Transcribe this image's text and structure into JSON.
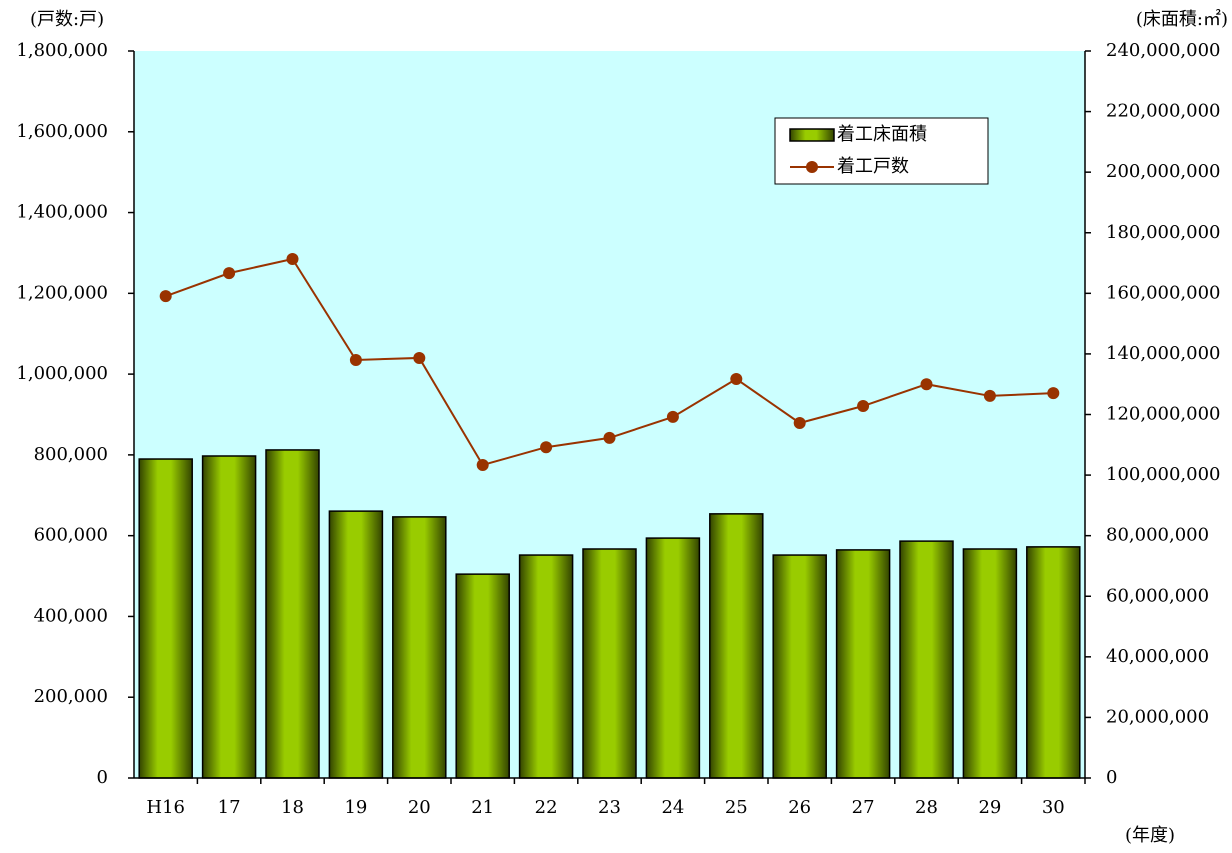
{
  "chart_data": {
    "type": "bar-line",
    "y_label": "(戸数:戸)",
    "y2_label": "(床面積:㎡)",
    "x_label": "(年度)",
    "categories": [
      "H16",
      "17",
      "18",
      "19",
      "20",
      "21",
      "22",
      "23",
      "24",
      "25",
      "26",
      "27",
      "28",
      "29",
      "30"
    ],
    "series": [
      {
        "name": "着工床面積",
        "type": "bar",
        "axis": "y2",
        "color": "#99cc00",
        "values": [
          105300000,
          106300000,
          108300000,
          88100000,
          86200000,
          67300000,
          73600000,
          75600000,
          79200000,
          87200000,
          73600000,
          75300000,
          78200000,
          75600000,
          76300000
        ]
      },
      {
        "name": "着工戸数",
        "type": "line",
        "axis": "y",
        "color": "#993300",
        "values": [
          1193000,
          1250000,
          1285000,
          1035000,
          1040000,
          775000,
          819000,
          842000,
          894000,
          988000,
          879000,
          921000,
          975000,
          946000,
          953000
        ]
      }
    ],
    "ylim": [
      0,
      1800000
    ],
    "yticks": [
      0,
      {
        "value": 200000,
        "label": "200,000"
      },
      {
        "value": 400000,
        "label": "400,000"
      },
      {
        "value": 600000,
        "label": "600,000"
      },
      {
        "value": 800000,
        "label": "800,000"
      },
      {
        "value": 1000000,
        "label": "1,000,000"
      },
      {
        "value": 1200000,
        "label": "1,200,000"
      },
      {
        "value": 1400000,
        "label": "1,400,000"
      },
      {
        "value": 1600000,
        "label": "1,600,000"
      },
      {
        "value": 1800000,
        "label": "1,800,000"
      }
    ],
    "y2lim": [
      0,
      240000000
    ],
    "y2ticks": [
      0,
      {
        "value": 20000000,
        "label": "20,000,000"
      },
      {
        "value": 40000000,
        "label": "40,000,000"
      },
      {
        "value": 60000000,
        "label": "60,000,000"
      },
      {
        "value": 80000000,
        "label": "80,000,000"
      },
      {
        "value": 100000000,
        "label": "100,000,000"
      },
      {
        "value": 120000000,
        "label": "120,000,000"
      },
      {
        "value": 140000000,
        "label": "140,000,000"
      },
      {
        "value": 160000000,
        "label": "160,000,000"
      },
      {
        "value": 180000000,
        "label": "180,000,000"
      },
      {
        "value": 200000000,
        "label": "200,000,000"
      },
      {
        "value": 220000000,
        "label": "220,000,000"
      },
      {
        "value": 240000000,
        "label": "240,000,000"
      }
    ],
    "plot_background": "#ccffff",
    "legend": "upper right"
  }
}
